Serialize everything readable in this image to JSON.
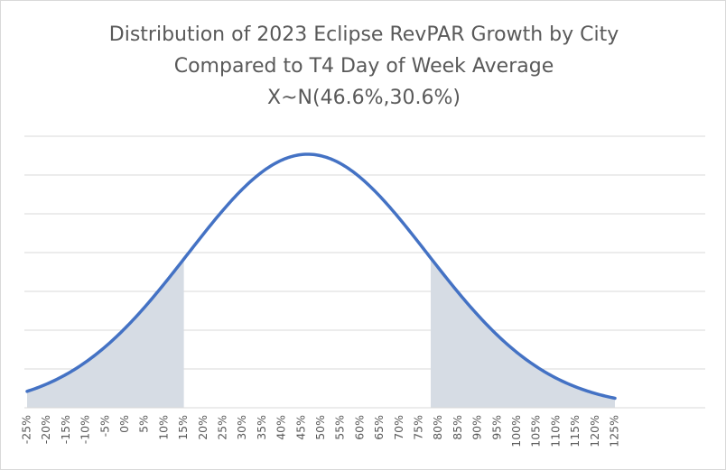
{
  "chart_data": {
    "type": "area",
    "title": "Distribution of 2023 Eclipse RevPAR Growth by City",
    "subtitle": "Compared to T4 Day of Week Average",
    "formula": "X~N(46.6%,30.6%)",
    "distribution": {
      "mean": 46.6,
      "sd": 30.6
    },
    "x_range": [
      -25,
      125
    ],
    "x_ticks": [
      "-25%",
      "-20%",
      "-15%",
      "-10%",
      "-5%",
      "0%",
      "5%",
      "10%",
      "15%",
      "20%",
      "25%",
      "30%",
      "35%",
      "40%",
      "45%",
      "50%",
      "55%",
      "60%",
      "65%",
      "70%",
      "75%",
      "80%",
      "85%",
      "90%",
      "95%",
      "100%",
      "105%",
      "110%",
      "115%",
      "120%",
      "125%"
    ],
    "x_tick_values": [
      -25,
      -20,
      -15,
      -10,
      -5,
      0,
      5,
      10,
      15,
      20,
      25,
      30,
      35,
      40,
      45,
      50,
      55,
      60,
      65,
      70,
      75,
      80,
      85,
      90,
      95,
      100,
      105,
      110,
      115,
      120,
      125
    ],
    "shaded_regions": [
      [
        -25,
        15
      ],
      [
        78,
        125
      ]
    ],
    "grid": true,
    "y_axis_labels": false,
    "colors": {
      "curve": "#4472c4",
      "shade": "#d6dce4",
      "grid": "#d9d9d9",
      "text": "#595959"
    }
  }
}
